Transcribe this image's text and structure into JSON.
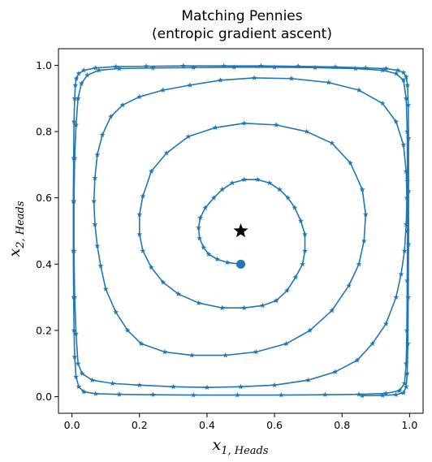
{
  "chart_data": {
    "type": "line",
    "title_line1": "Matching Pennies",
    "title_line2": "(entropic gradient ascent)",
    "xlabel": {
      "main": "x",
      "sub": "1, Heads"
    },
    "ylabel": {
      "main": "x",
      "sub": "2, Heads"
    },
    "xlim": [
      -0.04,
      1.04
    ],
    "ylim": [
      -0.05,
      1.05
    ],
    "xticks": [
      0.0,
      0.2,
      0.4,
      0.6,
      0.8,
      1.0
    ],
    "yticks": [
      0.0,
      0.2,
      0.4,
      0.6,
      0.8,
      1.0
    ],
    "tick_labels": [
      "0.0",
      "0.2",
      "0.4",
      "0.6",
      "0.8",
      "1.0"
    ],
    "line_color": "#1f77b4",
    "marker": "star",
    "start_point": {
      "x": 0.5,
      "y": 0.4,
      "marker": "circle",
      "color": "#1f77b4"
    },
    "equilibrium": {
      "x": 0.5,
      "y": 0.5,
      "marker": "star",
      "color": "#000000"
    },
    "series": [
      {
        "points": [
          [
            0.5,
            0.4
          ],
          [
            0.46,
            0.405
          ],
          [
            0.43,
            0.415
          ],
          [
            0.405,
            0.43
          ],
          [
            0.39,
            0.45
          ],
          [
            0.378,
            0.478
          ],
          [
            0.375,
            0.51
          ],
          [
            0.38,
            0.54
          ],
          [
            0.395,
            0.57
          ],
          [
            0.42,
            0.6
          ],
          [
            0.445,
            0.625
          ],
          [
            0.475,
            0.645
          ],
          [
            0.51,
            0.655
          ],
          [
            0.55,
            0.655
          ],
          [
            0.585,
            0.645
          ],
          [
            0.615,
            0.625
          ],
          [
            0.64,
            0.6
          ],
          [
            0.66,
            0.57
          ],
          [
            0.678,
            0.53
          ],
          [
            0.69,
            0.49
          ],
          [
            0.69,
            0.44
          ],
          [
            0.683,
            0.4
          ],
          [
            0.662,
            0.36
          ],
          [
            0.637,
            0.32
          ],
          [
            0.605,
            0.29
          ],
          [
            0.565,
            0.275
          ],
          [
            0.51,
            0.268
          ],
          [
            0.445,
            0.268
          ],
          [
            0.375,
            0.283
          ],
          [
            0.315,
            0.31
          ],
          [
            0.27,
            0.345
          ],
          [
            0.235,
            0.39
          ],
          [
            0.21,
            0.44
          ],
          [
            0.2,
            0.49
          ],
          [
            0.2,
            0.55
          ],
          [
            0.21,
            0.605
          ],
          [
            0.235,
            0.68
          ],
          [
            0.28,
            0.735
          ],
          [
            0.345,
            0.785
          ],
          [
            0.425,
            0.812
          ],
          [
            0.51,
            0.825
          ],
          [
            0.605,
            0.82
          ],
          [
            0.695,
            0.8
          ],
          [
            0.77,
            0.765
          ],
          [
            0.825,
            0.705
          ],
          [
            0.86,
            0.625
          ],
          [
            0.87,
            0.55
          ],
          [
            0.865,
            0.47
          ],
          [
            0.85,
            0.4
          ],
          [
            0.82,
            0.335
          ],
          [
            0.77,
            0.26
          ],
          [
            0.705,
            0.2
          ],
          [
            0.635,
            0.16
          ],
          [
            0.545,
            0.135
          ],
          [
            0.455,
            0.125
          ],
          [
            0.355,
            0.125
          ],
          [
            0.275,
            0.135
          ],
          [
            0.205,
            0.16
          ],
          [
            0.165,
            0.2
          ],
          [
            0.13,
            0.255
          ],
          [
            0.1,
            0.325
          ],
          [
            0.085,
            0.395
          ],
          [
            0.075,
            0.455
          ],
          [
            0.068,
            0.52
          ],
          [
            0.065,
            0.59
          ],
          [
            0.068,
            0.66
          ],
          [
            0.075,
            0.73
          ],
          [
            0.09,
            0.79
          ],
          [
            0.115,
            0.845
          ],
          [
            0.15,
            0.88
          ],
          [
            0.2,
            0.905
          ],
          [
            0.27,
            0.925
          ],
          [
            0.35,
            0.94
          ],
          [
            0.44,
            0.955
          ],
          [
            0.54,
            0.962
          ],
          [
            0.65,
            0.96
          ],
          [
            0.76,
            0.948
          ],
          [
            0.85,
            0.925
          ],
          [
            0.92,
            0.885
          ],
          [
            0.96,
            0.83
          ],
          [
            0.982,
            0.76
          ],
          [
            0.99,
            0.68
          ],
          [
            0.992,
            0.6
          ],
          [
            0.99,
            0.52
          ],
          [
            0.985,
            0.44
          ],
          [
            0.975,
            0.37
          ],
          [
            0.96,
            0.3
          ],
          [
            0.93,
            0.22
          ],
          [
            0.89,
            0.16
          ],
          [
            0.845,
            0.11
          ],
          [
            0.78,
            0.075
          ],
          [
            0.7,
            0.05
          ],
          [
            0.6,
            0.035
          ],
          [
            0.5,
            0.03
          ],
          [
            0.4,
            0.028
          ],
          [
            0.3,
            0.03
          ],
          [
            0.2,
            0.035
          ],
          [
            0.12,
            0.04
          ],
          [
            0.06,
            0.05
          ],
          [
            0.03,
            0.07
          ],
          [
            0.018,
            0.1
          ],
          [
            0.012,
            0.19
          ],
          [
            0.008,
            0.3
          ],
          [
            0.006,
            0.44
          ],
          [
            0.006,
            0.59
          ],
          [
            0.008,
            0.72
          ],
          [
            0.012,
            0.82
          ],
          [
            0.018,
            0.9
          ],
          [
            0.028,
            0.945
          ],
          [
            0.045,
            0.97
          ],
          [
            0.08,
            0.985
          ],
          [
            0.14,
            0.99
          ],
          [
            0.24,
            0.992
          ],
          [
            0.36,
            0.993
          ],
          [
            0.48,
            0.994
          ],
          [
            0.6,
            0.994
          ],
          [
            0.72,
            0.993
          ],
          [
            0.84,
            0.99
          ],
          [
            0.92,
            0.985
          ],
          [
            0.96,
            0.975
          ],
          [
            0.982,
            0.955
          ],
          [
            0.99,
            0.9
          ],
          [
            0.993,
            0.8
          ],
          [
            0.994,
            0.65
          ],
          [
            0.994,
            0.5
          ],
          [
            0.993,
            0.35
          ],
          [
            0.992,
            0.2
          ],
          [
            0.99,
            0.1
          ],
          [
            0.985,
            0.04
          ],
          [
            0.97,
            0.018
          ],
          [
            0.93,
            0.01
          ],
          [
            0.85,
            0.007
          ],
          [
            0.75,
            0.006
          ],
          [
            0.62,
            0.005
          ],
          [
            0.49,
            0.005
          ],
          [
            0.36,
            0.005
          ],
          [
            0.24,
            0.006
          ],
          [
            0.14,
            0.007
          ],
          [
            0.07,
            0.009
          ],
          [
            0.035,
            0.015
          ],
          [
            0.02,
            0.03
          ],
          [
            0.012,
            0.06
          ],
          [
            0.008,
            0.12
          ],
          [
            0.006,
            0.2
          ],
          [
            0.005,
            0.3
          ],
          [
            0.004,
            0.44
          ],
          [
            0.004,
            0.59
          ],
          [
            0.005,
            0.72
          ],
          [
            0.006,
            0.83
          ],
          [
            0.008,
            0.9
          ],
          [
            0.01,
            0.94
          ],
          [
            0.013,
            0.96
          ],
          [
            0.02,
            0.975
          ],
          [
            0.035,
            0.985
          ],
          [
            0.07,
            0.992
          ],
          [
            0.13,
            0.996
          ],
          [
            0.22,
            0.997
          ],
          [
            0.33,
            0.998
          ],
          [
            0.45,
            0.998
          ],
          [
            0.56,
            0.998
          ],
          [
            0.67,
            0.997
          ],
          [
            0.78,
            0.995
          ],
          [
            0.87,
            0.992
          ],
          [
            0.93,
            0.99
          ],
          [
            0.965,
            0.985
          ],
          [
            0.982,
            0.978
          ],
          [
            0.99,
            0.965
          ],
          [
            0.994,
            0.94
          ],
          [
            0.996,
            0.88
          ],
          [
            0.997,
            0.78
          ],
          [
            0.997,
            0.62
          ],
          [
            0.997,
            0.46
          ],
          [
            0.996,
            0.3
          ],
          [
            0.995,
            0.16
          ],
          [
            0.993,
            0.07
          ],
          [
            0.99,
            0.03
          ],
          [
            0.982,
            0.012
          ],
          [
            0.96,
            0.006
          ],
          [
            0.92,
            0.004
          ],
          [
            0.86,
            0.003
          ]
        ]
      }
    ]
  }
}
